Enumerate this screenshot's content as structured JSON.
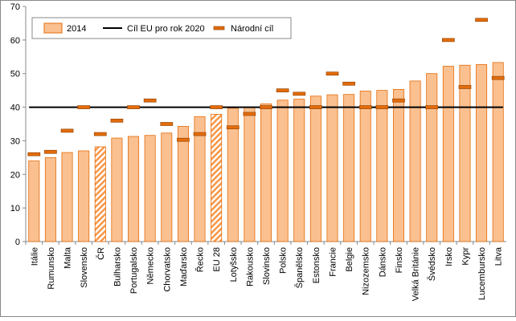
{
  "chart_data": {
    "type": "bar",
    "categories": [
      "Itálie",
      "Rumunsko",
      "Malta",
      "Slovensko",
      "ČR",
      "Bulharsko",
      "Portugalsko",
      "Německo",
      "Chorvatsko",
      "Maďarsko",
      "Řecko",
      "EU 28",
      "Lotyšsko",
      "Rakousko",
      "Slovinsko",
      "Polsko",
      "Španělsko",
      "Estonsko",
      "Francie",
      "Belgie",
      "Nizozemsko",
      "Dánsko",
      "Finsko",
      "Velká Británie",
      "Švédsko",
      "Irsko",
      "Kypr",
      "Lucembursko",
      "Litva"
    ],
    "series": [
      {
        "name": "2014",
        "color": "#fac090",
        "values": [
          24,
          25,
          26.5,
          27,
          28.2,
          30.8,
          31.3,
          31.6,
          32.3,
          34.3,
          37.2,
          37.9,
          39.7,
          39.9,
          41,
          42.1,
          42.4,
          43.3,
          43.7,
          43.8,
          44.8,
          45,
          45.3,
          47.8,
          50,
          52.2,
          52.5,
          52.7,
          53.3
        ]
      },
      {
        "name": "Národní cíl",
        "color": "#e46c0a",
        "values": [
          26,
          26.7,
          33,
          40,
          32,
          36,
          40,
          42,
          35,
          30.3,
          32,
          40,
          34,
          38,
          40,
          45,
          44,
          40,
          50,
          47,
          40,
          40,
          42,
          null,
          40,
          60,
          46,
          66,
          48.7
        ]
      }
    ],
    "eu_target": {
      "name": "Cíl EU pro rok 2020",
      "color": "#000000",
      "value": 40
    },
    "hatched_categories": [
      "ČR",
      "EU 28"
    ],
    "ylim": [
      0,
      70
    ],
    "yticks": [
      0,
      10,
      20,
      30,
      40,
      50,
      60,
      70
    ],
    "grid": false
  }
}
